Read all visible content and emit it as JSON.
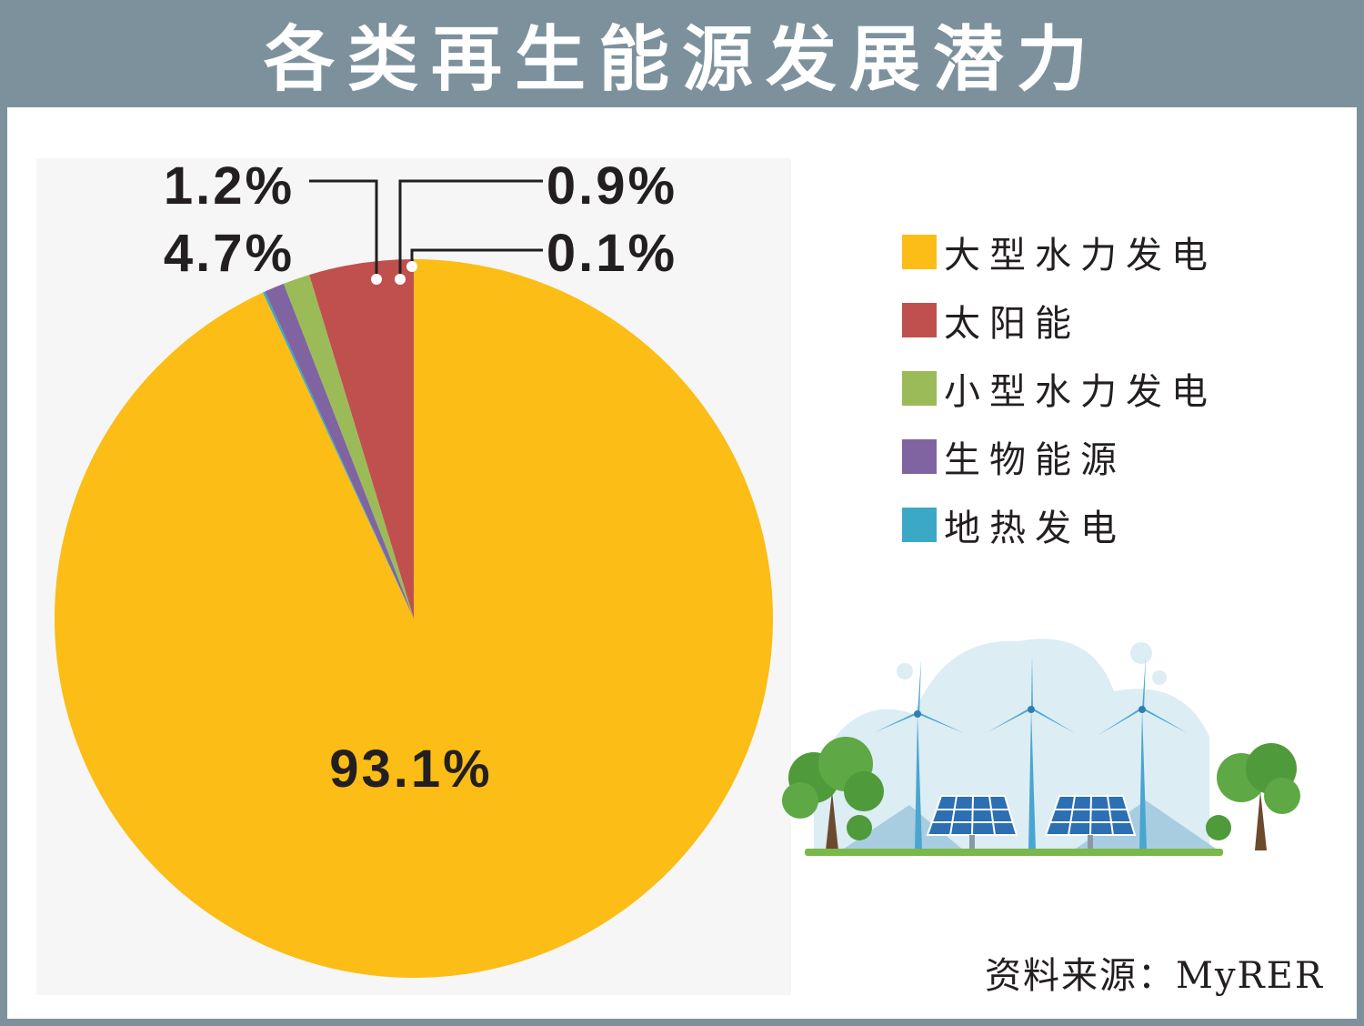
{
  "title": "各类再生能源发展潜力",
  "source": "资料来源：MyRER",
  "chart_data": {
    "type": "pie",
    "title": "各类再生能源发展潜力",
    "start_angle_deg": 0,
    "direction": "counterclockwise",
    "slices": [
      {
        "label": "大型水力发电",
        "value": 93.1,
        "display": "93.1%",
        "color": "#fbbd16"
      },
      {
        "label": "太阳能",
        "value": 4.7,
        "display": "4.7%",
        "color": "#c0504e"
      },
      {
        "label": "小型水力发电",
        "value": 1.2,
        "display": "1.2%",
        "color": "#9bbb59"
      },
      {
        "label": "生物能源",
        "value": 0.9,
        "display": "0.9%",
        "color": "#8064a2"
      },
      {
        "label": "地热发电",
        "value": 0.1,
        "display": "0.1%",
        "color": "#3ba9c6"
      }
    ],
    "legend_position": "right"
  }
}
